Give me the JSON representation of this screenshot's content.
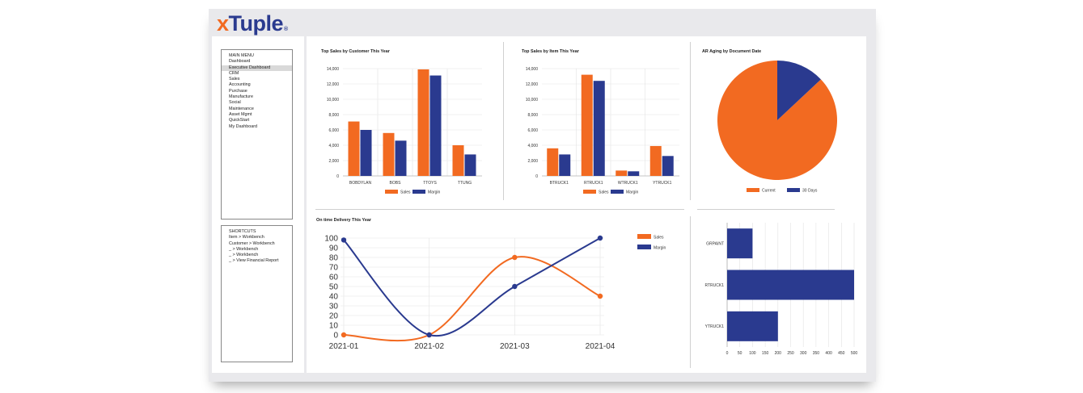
{
  "brand": {
    "logo_x": "x",
    "logo_text": "Tuple",
    "logo_mark": "®"
  },
  "colors": {
    "orange": "#f26a21",
    "blue": "#2a3a8f",
    "grid": "#e3e3e3"
  },
  "menu": {
    "heading": "MAIN MENU",
    "items": [
      "Dashboard",
      "Executive Dashboard",
      "CRM",
      "Sales",
      "Accounting",
      "Purchase",
      "Manufacture",
      "Social",
      "Maintenance",
      "Asset Mgmt",
      "QuickStart",
      "My Dashboard"
    ],
    "selected": "Executive Dashboard"
  },
  "shortcuts": {
    "heading": "SHORTCUTS",
    "items": [
      "Item > Workbench",
      "Customer > Workbench",
      "_ > Workbench",
      "_ > Workbench",
      "_ > View Financial Report"
    ]
  },
  "chart_data": [
    {
      "type": "bar",
      "title": "Top Sales by Customer This Year",
      "categories": [
        "BOBDYLAN",
        "BOBS",
        "TTOYS",
        "TTUNG"
      ],
      "series": [
        {
          "name": "Sales",
          "values": [
            7100,
            5600,
            13900,
            4000
          ]
        },
        {
          "name": "Margin",
          "values": [
            6000,
            4600,
            13100,
            2800
          ]
        }
      ],
      "ylim": [
        0,
        14000
      ],
      "yticks": [
        "0",
        "2,000",
        "4,000",
        "6,000",
        "8,000",
        "10,000",
        "12,000",
        "14,000"
      ],
      "legend": "bottom"
    },
    {
      "type": "bar",
      "title": "Top Sales by Item This Year",
      "categories": [
        "BTRUCK1",
        "RTRUCK1",
        "WTRUCK1",
        "YTRUCK1"
      ],
      "series": [
        {
          "name": "Sales",
          "values": [
            3600,
            13200,
            700,
            3900
          ]
        },
        {
          "name": "Margin",
          "values": [
            2800,
            12400,
            600,
            2600
          ]
        }
      ],
      "ylim": [
        0,
        14000
      ],
      "yticks": [
        "0",
        "2,000",
        "4,000",
        "6,000",
        "8,000",
        "10,000",
        "12,000",
        "14,000"
      ],
      "legend": "bottom"
    },
    {
      "type": "pie",
      "title": "AR Aging by Document Date",
      "categories": [
        "Current",
        "30 Days"
      ],
      "values": [
        87,
        13
      ],
      "legend": "bottom"
    },
    {
      "type": "line",
      "title": "On time Delivery This Year",
      "x": [
        "2021-01",
        "2021-02",
        "2021-03",
        "2021-04"
      ],
      "series": [
        {
          "name": "Sales",
          "values": [
            0,
            0,
            80,
            40
          ]
        },
        {
          "name": "Margin",
          "values": [
            98,
            0,
            50,
            100
          ]
        }
      ],
      "ylim": [
        0,
        100
      ],
      "yticks": [
        "0",
        "10",
        "20",
        "30",
        "40",
        "50",
        "60",
        "70",
        "80",
        "90",
        "100"
      ],
      "legend": "top-right"
    },
    {
      "type": "bar",
      "orientation": "horizontal",
      "categories": [
        "GRPAINT",
        "RTRUCK1",
        "YTRUCK1"
      ],
      "values": [
        100,
        500,
        200
      ],
      "xlim": [
        0,
        500
      ],
      "xticks": [
        "0",
        "50",
        "100",
        "150",
        "200",
        "250",
        "300",
        "350",
        "400",
        "450",
        "500"
      ]
    }
  ]
}
